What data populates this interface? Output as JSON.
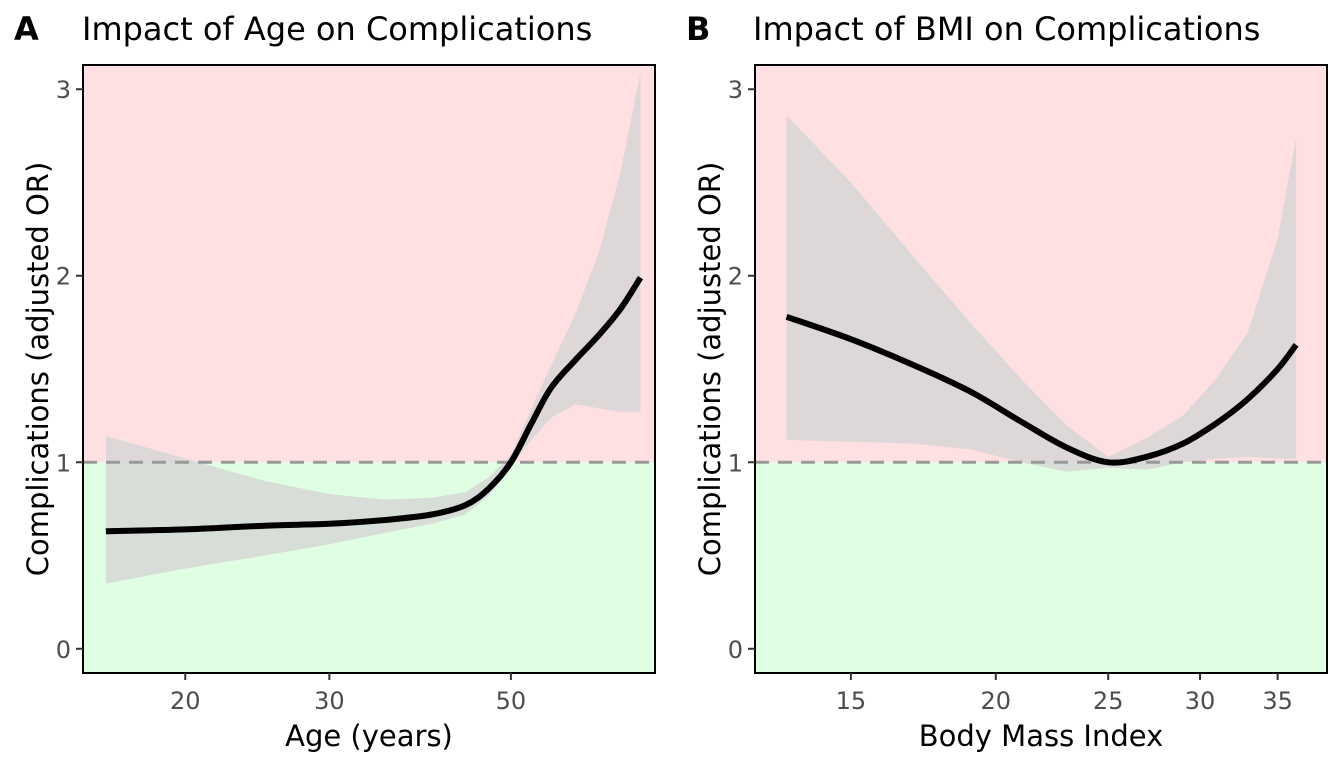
{
  "chart_data": [
    {
      "type": "line",
      "panel_tag": "A",
      "title": "Impact of Age on Complications",
      "xlabel": "Age (years)",
      "ylabel": "Complications (adjusted OR)",
      "x_scale": "log",
      "xlim": [
        15,
        75
      ],
      "ylim": [
        -0.13,
        3.13
      ],
      "x_ticks": [
        20,
        30,
        50
      ],
      "x_tick_labels": [
        "20",
        "30",
        "50"
      ],
      "y_ticks": [
        0,
        1,
        2,
        3
      ],
      "y_tick_labels": [
        "0",
        "1",
        "2",
        "3"
      ],
      "reference_line": 1,
      "region_colors": {
        "above": "#ffe0e2",
        "below": "#e0ffe2"
      },
      "band_color": "#d4d4d4",
      "line_color": "#000000",
      "ref_line_color": "#999999",
      "series": [
        {
          "x": [
            16,
            20,
            25,
            30,
            35,
            40,
            44,
            47,
            50,
            53,
            56,
            60,
            64,
            68,
            72
          ],
          "y": [
            0.63,
            0.64,
            0.66,
            0.67,
            0.69,
            0.72,
            0.77,
            0.86,
            1.0,
            1.21,
            1.4,
            1.55,
            1.68,
            1.82,
            1.99
          ],
          "lower": [
            0.35,
            0.43,
            0.5,
            0.56,
            0.62,
            0.67,
            0.72,
            0.82,
            0.98,
            1.12,
            1.24,
            1.31,
            1.29,
            1.27,
            1.27
          ],
          "upper": [
            1.14,
            1.02,
            0.9,
            0.83,
            0.8,
            0.81,
            0.84,
            0.92,
            1.04,
            1.29,
            1.52,
            1.8,
            2.12,
            2.55,
            3.09
          ]
        }
      ]
    },
    {
      "type": "line",
      "panel_tag": "B",
      "title": "Impact of BMI on Complications",
      "xlabel": "Body Mass Index",
      "ylabel": "Complications (adjusted OR)",
      "x_scale": "log",
      "xlim": [
        12.4,
        38.6
      ],
      "ylim": [
        -0.13,
        3.13
      ],
      "x_ticks": [
        15,
        20,
        25,
        30,
        35
      ],
      "x_tick_labels": [
        "15",
        "20",
        "25",
        "30",
        "35"
      ],
      "y_ticks": [
        0,
        1,
        2,
        3
      ],
      "y_tick_labels": [
        "0",
        "1",
        "2",
        "3"
      ],
      "reference_line": 1,
      "region_colors": {
        "above": "#ffe0e2",
        "below": "#e0ffe2"
      },
      "band_color": "#d4d4d4",
      "line_color": "#000000",
      "ref_line_color": "#999999",
      "series": [
        {
          "x": [
            13.2,
            15,
            17,
            19,
            21,
            23,
            25,
            27,
            29,
            31,
            33,
            35,
            36.3
          ],
          "y": [
            1.78,
            1.66,
            1.52,
            1.38,
            1.22,
            1.08,
            1.0,
            1.03,
            1.1,
            1.21,
            1.34,
            1.5,
            1.63
          ],
          "lower": [
            1.12,
            1.11,
            1.1,
            1.07,
            1.0,
            0.95,
            0.97,
            0.96,
            1.0,
            1.02,
            1.03,
            1.02,
            1.02
          ],
          "upper": [
            2.86,
            2.5,
            2.1,
            1.75,
            1.45,
            1.2,
            1.03,
            1.13,
            1.25,
            1.45,
            1.7,
            2.2,
            2.74
          ]
        }
      ]
    }
  ]
}
